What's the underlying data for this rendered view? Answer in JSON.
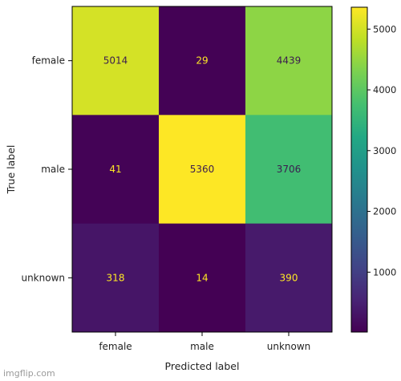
{
  "chart_data": {
    "type": "heatmap",
    "title": "",
    "xlabel": "Predicted label",
    "ylabel": "True label",
    "x_categories": [
      "female",
      "male",
      "unknown"
    ],
    "y_categories": [
      "female",
      "male",
      "unknown"
    ],
    "values": [
      [
        5014,
        29,
        4439
      ],
      [
        41,
        5360,
        3706
      ],
      [
        318,
        14,
        390
      ]
    ],
    "colormap": "viridis",
    "colorbar": {
      "range": [
        14,
        5360
      ],
      "ticks": [
        1000,
        2000,
        3000,
        4000,
        5000
      ]
    },
    "label_colors": {
      "on_dark": "#fde725",
      "on_light": "#3b1c4f"
    },
    "grid": false
  },
  "watermark": "imgflip.com"
}
